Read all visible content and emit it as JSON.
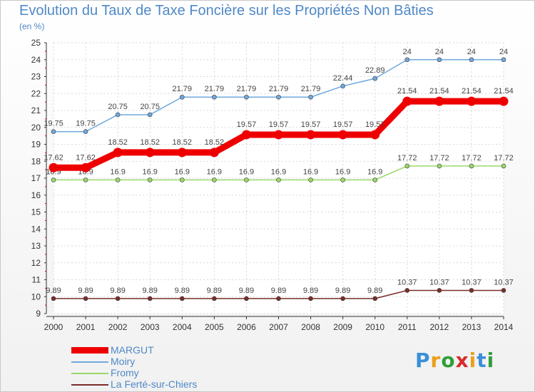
{
  "title": "Evolution du Taux de Taxe Foncière sur les Propriétés Non Bâties",
  "unit": "(en %)",
  "logo": {
    "letters": [
      "P",
      "r",
      "o",
      "x",
      "i",
      "t",
      "i"
    ],
    "colors": [
      "#3a8fd8",
      "#e8a11a",
      "#2f9f3a",
      "#d92b2b",
      "#e8a11a",
      "#3a8fd8",
      "#2f9f3a"
    ]
  },
  "chart_data": {
    "type": "line",
    "title": "Evolution du Taux de Taxe Foncière sur les Propriétés Non Bâties",
    "ylabel": "(en %)",
    "xlabel": "",
    "ylim": [
      9,
      25
    ],
    "yticks": [
      "9",
      "10",
      "11",
      "12",
      "13",
      "14",
      "15",
      "16",
      "17",
      "18",
      "19",
      "20",
      "21",
      "22",
      "23",
      "24",
      "25"
    ],
    "x": [
      "2000",
      "2001",
      "2002",
      "2003",
      "2004",
      "2005",
      "2006",
      "2007",
      "2008",
      "2009",
      "2010",
      "2011",
      "2012",
      "2013",
      "2014"
    ],
    "series": [
      {
        "name": "MARGUT",
        "color": "#ee0000",
        "emphasis": true,
        "values": [
          17.62,
          17.62,
          18.52,
          18.52,
          18.52,
          18.52,
          19.57,
          19.57,
          19.57,
          19.57,
          19.57,
          21.54,
          21.54,
          21.54,
          21.54
        ],
        "labels": [
          "17.62",
          "17.62",
          "18.52",
          "18.52",
          "18.52",
          "18.52",
          "19.57",
          "19.57",
          "19.57",
          "19.57",
          "19.57",
          "21.54",
          "21.54",
          "21.54",
          "21.54"
        ]
      },
      {
        "name": "Moiry",
        "color": "#6fa8dc",
        "emphasis": false,
        "values": [
          19.75,
          19.75,
          20.75,
          20.75,
          21.79,
          21.79,
          21.79,
          21.79,
          21.79,
          22.44,
          22.89,
          24,
          24,
          24,
          24
        ],
        "labels": [
          "19.75",
          "19.75",
          "20.75",
          "20.75",
          "21.79",
          "21.79",
          "21.79",
          "21.79",
          "21.79",
          "22.44",
          "22.89",
          "24",
          "24",
          "24",
          "24"
        ]
      },
      {
        "name": "Fromy",
        "color": "#9ad86a",
        "emphasis": false,
        "values": [
          16.9,
          16.9,
          16.9,
          16.9,
          16.9,
          16.9,
          16.9,
          16.9,
          16.9,
          16.9,
          16.9,
          17.72,
          17.72,
          17.72,
          17.72
        ],
        "labels": [
          "16.9",
          "16.9",
          "16.9",
          "16.9",
          "16.9",
          "16.9",
          "16.9",
          "16.9",
          "16.9",
          "16.9",
          "16.9",
          "17.72",
          "17.72",
          "17.72",
          "17.72"
        ]
      },
      {
        "name": "La Ferté-sur-Chiers",
        "color": "#7b2d2d",
        "emphasis": false,
        "values": [
          9.89,
          9.89,
          9.89,
          9.89,
          9.89,
          9.89,
          9.89,
          9.89,
          9.89,
          9.89,
          9.89,
          10.37,
          10.37,
          10.37,
          10.37
        ],
        "labels": [
          "9.89",
          "9.89",
          "9.89",
          "9.89",
          "9.89",
          "9.89",
          "9.89",
          "9.89",
          "9.89",
          "9.89",
          "9.89",
          "10.37",
          "10.37",
          "10.37",
          "10.37"
        ]
      }
    ]
  }
}
